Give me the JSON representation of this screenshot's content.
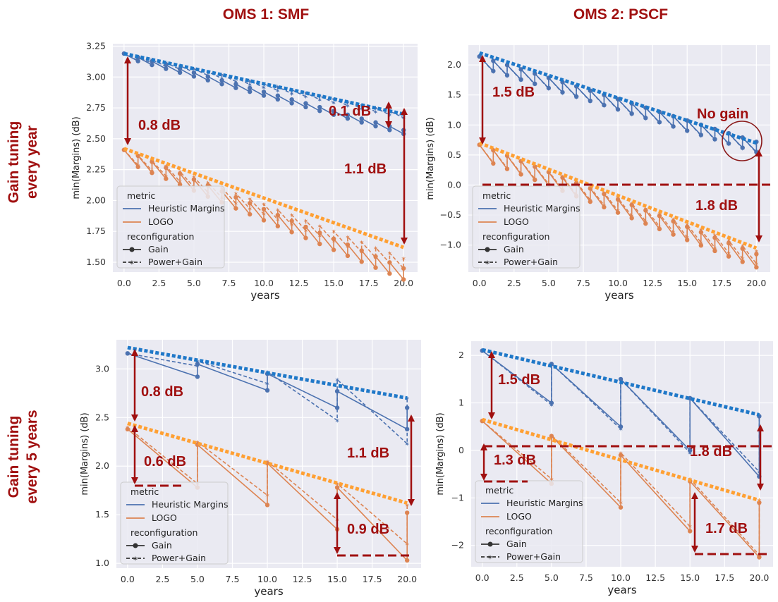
{
  "columns": [
    "OMS 1: SMF",
    "OMS 2: PSCF"
  ],
  "rows": [
    [
      "Gain tuning",
      "every year"
    ],
    [
      "Gain tuning",
      "every 5 years"
    ]
  ],
  "colors": {
    "heuristic": "#4c72b0",
    "logo": "#dd8452",
    "envelope_blue": "#1f78c8",
    "envelope_orange": "#ffa033",
    "annotation": "#a01010",
    "panel_bg": "#eaeaf2"
  },
  "legend": {
    "metric_title": "metric",
    "metric_items": [
      "Heuristic Margins",
      "LOGO"
    ],
    "reconf_title": "reconfiguration",
    "reconf_items": [
      "Gain",
      "Power+Gain"
    ]
  },
  "chart_data": [
    {
      "type": "line",
      "panel": "OMS 1: SMF / every year",
      "xlabel": "years",
      "ylabel": "min(Margins)  (dB)",
      "xlim": [
        -0.8,
        21
      ],
      "ylim": [
        1.42,
        3.27
      ],
      "xticks": [
        "0.0",
        "2.5",
        "5.0",
        "7.5",
        "10.0",
        "12.5",
        "15.0",
        "17.5",
        "20.0"
      ],
      "yticks": [
        "1.50",
        "1.75",
        "2.00",
        "2.25",
        "2.50",
        "2.75",
        "3.00",
        "3.25"
      ],
      "grid": true,
      "legend_position": "lower-left",
      "series": [
        {
          "name": "Heuristic Margins",
          "reconfiguration": "Gain",
          "tuning_every": 1,
          "start": 3.19,
          "drop": 0.03,
          "peaks": [
            [
              0,
              3.19
            ],
            [
              20,
              2.57
            ]
          ]
        },
        {
          "name": "Heuristic Margins",
          "reconfiguration": "Power+Gain",
          "tuning_every": 1,
          "start": 3.19,
          "drop": 0.03,
          "peaks": [
            [
              0,
              3.19
            ],
            [
              20,
              2.7
            ]
          ]
        },
        {
          "name": "LOGO",
          "reconfiguration": "Gain",
          "tuning_every": 1,
          "start": 2.41,
          "drop": 0.09,
          "peaks": [
            [
              0,
              2.41
            ],
            [
              20,
              1.45
            ]
          ]
        },
        {
          "name": "LOGO",
          "reconfiguration": "Power+Gain",
          "tuning_every": 1,
          "start": 2.41,
          "drop": 0.08,
          "peaks": [
            [
              0,
              2.41
            ],
            [
              20,
              1.53
            ]
          ]
        }
      ],
      "envelopes": [
        {
          "color": "blue",
          "points": [
            [
              0,
              3.19
            ],
            [
              20,
              2.7
            ]
          ]
        },
        {
          "color": "orange",
          "points": [
            [
              0,
              2.42
            ],
            [
              20,
              1.62
            ]
          ]
        }
      ],
      "annotations": [
        "0.8 dB",
        "0.1 dB",
        "1.1 dB"
      ]
    },
    {
      "type": "line",
      "panel": "OMS 2: PSCF / every year",
      "xlabel": "years",
      "ylabel": "min(Margins)  (dB)",
      "xlim": [
        -0.8,
        21
      ],
      "ylim": [
        -1.45,
        2.33
      ],
      "xticks": [
        "0.0",
        "2.5",
        "5.0",
        "7.5",
        "10.0",
        "12.5",
        "15.0",
        "17.5",
        "20.0"
      ],
      "yticks": [
        "-1.0",
        "-0.5",
        "0.0",
        "0.5",
        "1.0",
        "1.5",
        "2.0"
      ],
      "grid": true,
      "legend_position": "lower-left",
      "series": [
        {
          "name": "Heuristic Margins",
          "reconfiguration": "Gain",
          "tuning_every": 1,
          "start": 2.14,
          "drop": 0.17,
          "peaks": [
            [
              0,
              2.14
            ],
            [
              20,
              0.72
            ]
          ]
        },
        {
          "name": "Heuristic Margins",
          "reconfiguration": "Power+Gain",
          "tuning_every": 1,
          "start": 2.14,
          "drop": 0.18,
          "peaks": [
            [
              0,
              2.14
            ],
            [
              20,
              0.72
            ]
          ]
        },
        {
          "name": "LOGO",
          "reconfiguration": "Gain",
          "tuning_every": 1,
          "start": 0.67,
          "drop": 0.22,
          "peaks": [
            [
              0,
              0.67
            ],
            [
              20,
              -1.15
            ]
          ]
        },
        {
          "name": "LOGO",
          "reconfiguration": "Power+Gain",
          "tuning_every": 1,
          "start": 0.67,
          "drop": 0.21,
          "peaks": [
            [
              0,
              0.67
            ],
            [
              20,
              -1.1
            ]
          ]
        }
      ],
      "envelopes": [
        {
          "color": "blue",
          "points": [
            [
              0,
              2.2
            ],
            [
              20,
              0.7
            ]
          ]
        },
        {
          "color": "orange",
          "points": [
            [
              0,
              0.7
            ],
            [
              20,
              -1.05
            ]
          ]
        }
      ],
      "annotations": [
        "1.5 dB",
        "No gain",
        "1.8 dB"
      ]
    },
    {
      "type": "line",
      "panel": "OMS 1: SMF / every 5 years",
      "xlabel": "years",
      "ylabel": "min(Margins)  (dB)",
      "xlim": [
        -0.8,
        21
      ],
      "ylim": [
        0.95,
        3.3
      ],
      "xticks": [
        "0.0",
        "2.5",
        "5.0",
        "7.5",
        "10.0",
        "12.5",
        "15.0",
        "17.5",
        "20.0"
      ],
      "yticks": [
        "1.0",
        "1.5",
        "2.0",
        "2.5",
        "3.0"
      ],
      "grid": true,
      "legend_position": "lower-left",
      "series": [
        {
          "name": "Heuristic Margins",
          "reconfiguration": "Gain",
          "tuning_every": 5,
          "points": [
            [
              0,
              3.16
            ],
            [
              5,
              2.92
            ],
            [
              5,
              3.05
            ],
            [
              10,
              2.78
            ],
            [
              10,
              2.95
            ],
            [
              15,
              2.6
            ],
            [
              15,
              2.77
            ],
            [
              20,
              2.38
            ],
            [
              20,
              2.6
            ]
          ]
        },
        {
          "name": "Heuristic Margins",
          "reconfiguration": "Power+Gain",
          "tuning_every": 5,
          "points": [
            [
              0,
              3.16
            ],
            [
              5,
              3.03
            ],
            [
              5,
              3.08
            ],
            [
              10,
              2.85
            ],
            [
              10,
              2.97
            ],
            [
              15,
              2.47
            ],
            [
              15,
              2.89
            ],
            [
              20,
              2.23
            ],
            [
              20,
              2.7
            ]
          ]
        },
        {
          "name": "LOGO",
          "reconfiguration": "Gain",
          "tuning_every": 5,
          "points": [
            [
              0,
              2.38
            ],
            [
              5,
              1.78
            ],
            [
              5,
              2.22
            ],
            [
              10,
              1.6
            ],
            [
              10,
              2.03
            ],
            [
              15,
              1.35
            ],
            [
              15,
              1.78
            ],
            [
              20,
              1.03
            ],
            [
              20,
              1.52
            ]
          ]
        },
        {
          "name": "LOGO",
          "reconfiguration": "Power+Gain",
          "tuning_every": 5,
          "points": [
            [
              0,
              2.4
            ],
            [
              5,
              1.82
            ],
            [
              5,
              2.25
            ],
            [
              10,
              1.7
            ],
            [
              10,
              2.05
            ],
            [
              15,
              1.45
            ],
            [
              15,
              1.82
            ],
            [
              20,
              1.2
            ],
            [
              20,
              1.6
            ]
          ]
        }
      ],
      "envelopes": [
        {
          "color": "blue",
          "points": [
            [
              0,
              3.22
            ],
            [
              20,
              2.7
            ]
          ]
        },
        {
          "color": "orange",
          "points": [
            [
              0,
              2.44
            ],
            [
              20,
              1.62
            ]
          ]
        }
      ],
      "annotations": [
        "0.8 dB",
        "0.6 dB",
        "1.1 dB",
        "0.9 dB"
      ]
    },
    {
      "type": "line",
      "panel": "OMS 2: PSCF / every 5 years",
      "xlabel": "years",
      "ylabel": "min(Margins)  (dB)",
      "xlim": [
        -0.8,
        21
      ],
      "ylim": [
        -2.45,
        2.3
      ],
      "xticks": [
        "0.0",
        "2.5",
        "5.0",
        "7.5",
        "10.0",
        "12.5",
        "15.0",
        "17.5",
        "20.0"
      ],
      "yticks": [
        "-2",
        "-1",
        "0",
        "1",
        "2"
      ],
      "grid": true,
      "legend_position": "lower-left",
      "series": [
        {
          "name": "Heuristic Margins",
          "reconfiguration": "Gain",
          "tuning_every": 5,
          "points": [
            [
              0,
              2.1
            ],
            [
              5,
              1.0
            ],
            [
              5,
              1.82
            ],
            [
              10,
              0.5
            ],
            [
              10,
              1.5
            ],
            [
              15,
              0.0
            ],
            [
              15,
              1.1
            ],
            [
              20,
              -0.55
            ],
            [
              20,
              0.72
            ]
          ]
        },
        {
          "name": "Heuristic Margins",
          "reconfiguration": "Power+Gain",
          "tuning_every": 5,
          "points": [
            [
              0,
              2.1
            ],
            [
              5,
              0.96
            ],
            [
              5,
              1.82
            ],
            [
              10,
              0.45
            ],
            [
              10,
              1.5
            ],
            [
              15,
              -0.05
            ],
            [
              15,
              1.1
            ],
            [
              20,
              -0.45
            ],
            [
              20,
              0.72
            ]
          ]
        },
        {
          "name": "LOGO",
          "reconfiguration": "Gain",
          "tuning_every": 5,
          "points": [
            [
              0,
              0.62
            ],
            [
              5,
              -0.7
            ],
            [
              5,
              0.3
            ],
            [
              10,
              -1.2
            ],
            [
              10,
              -0.1
            ],
            [
              15,
              -1.7
            ],
            [
              15,
              -0.65
            ],
            [
              20,
              -2.25
            ],
            [
              20,
              -1.1
            ]
          ]
        },
        {
          "name": "LOGO",
          "reconfiguration": "Power+Gain",
          "tuning_every": 5,
          "points": [
            [
              0,
              0.62
            ],
            [
              5,
              -0.6
            ],
            [
              5,
              0.32
            ],
            [
              10,
              -1.1
            ],
            [
              10,
              -0.05
            ],
            [
              15,
              -1.6
            ],
            [
              15,
              -0.6
            ],
            [
              20,
              -2.2
            ],
            [
              20,
              -1.05
            ]
          ]
        }
      ],
      "envelopes": [
        {
          "color": "blue",
          "points": [
            [
              0,
              2.12
            ],
            [
              20,
              0.75
            ]
          ]
        },
        {
          "color": "orange",
          "points": [
            [
              0,
              0.65
            ],
            [
              20,
              -1.05
            ]
          ]
        }
      ],
      "annotations": [
        "1.5 dB",
        "1.3 dB",
        "1.8 dB",
        "1.7 dB"
      ]
    }
  ]
}
